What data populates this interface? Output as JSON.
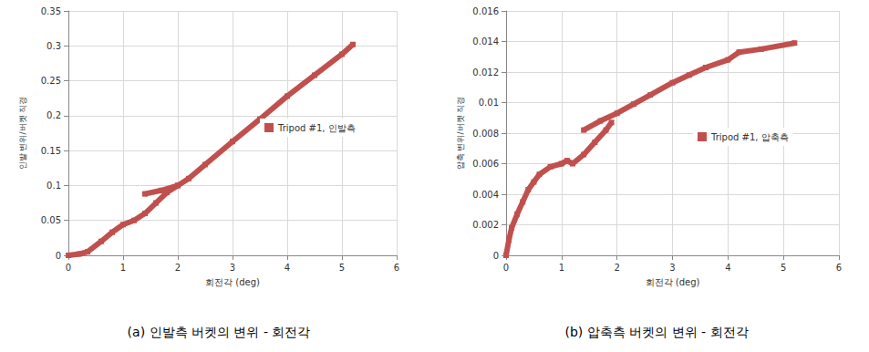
{
  "chart_data": [
    {
      "type": "line",
      "title": "(a) 인발측 버켓의 변위 - 회전각",
      "x_label": "회전각 (deg)",
      "y_label": "인발 변위/버켓 직경",
      "x": [
        0,
        0.2,
        0.35,
        0.6,
        0.8,
        1.0,
        1.2,
        1.4,
        1.6,
        1.8,
        2.0,
        2.0,
        1.4,
        1.7,
        2.0,
        2.2,
        2.5,
        3.0,
        3.5,
        4.0,
        4.5,
        5.0,
        5.2
      ],
      "series": [
        {
          "name": "Tripod #1, 인발측",
          "color": "#c0504d",
          "marker": "square",
          "values": [
            0,
            0.002,
            0.005,
            0.02,
            0.033,
            0.044,
            0.05,
            0.06,
            0.075,
            0.09,
            0.1,
            null,
            0.088,
            0.093,
            0.1,
            0.11,
            0.13,
            0.163,
            0.195,
            0.228,
            0.258,
            0.288,
            0.302
          ]
        }
      ],
      "xlim": [
        0,
        6
      ],
      "xticks": [
        0,
        1,
        2,
        3,
        4,
        5,
        6
      ],
      "ylim": [
        0,
        0.35
      ],
      "yticks": [
        0,
        0.05,
        0.1,
        0.15,
        0.2,
        0.25,
        0.3,
        0.35
      ],
      "grid": true,
      "legend": "center right"
    },
    {
      "type": "line",
      "title": "(b) 압축측 버켓의 변위 - 회전각",
      "x_label": "회전각 (deg)",
      "y_label": "압축 변위/버켓 직경",
      "x": [
        0,
        0.05,
        0.1,
        0.2,
        0.3,
        0.4,
        0.5,
        0.6,
        0.8,
        1.0,
        1.1,
        1.2,
        1.4,
        1.6,
        1.8,
        1.9,
        1.9,
        1.4,
        1.7,
        2.0,
        2.3,
        2.6,
        3.0,
        3.3,
        3.6,
        4.0,
        4.2,
        4.6,
        5.2
      ],
      "series": [
        {
          "name": "Tripod #1, 압축측",
          "color": "#c0504d",
          "marker": "square",
          "values": [
            0,
            0.001,
            0.0018,
            0.0027,
            0.0035,
            0.0043,
            0.0048,
            0.0053,
            0.0058,
            0.006,
            0.0062,
            0.006,
            0.0066,
            0.0074,
            0.0082,
            0.0087,
            null,
            0.0082,
            0.0088,
            0.0093,
            0.0099,
            0.0105,
            0.0113,
            0.0118,
            0.0123,
            0.0128,
            0.0133,
            0.0135,
            0.0139
          ]
        }
      ],
      "xlim": [
        0,
        6
      ],
      "xticks": [
        0,
        1,
        2,
        3,
        4,
        5,
        6
      ],
      "ylim": [
        0,
        0.016
      ],
      "yticks": [
        0,
        0.002,
        0.004,
        0.006,
        0.008,
        0.01,
        0.012,
        0.014,
        0.016
      ],
      "grid": true,
      "legend": "center right"
    }
  ]
}
